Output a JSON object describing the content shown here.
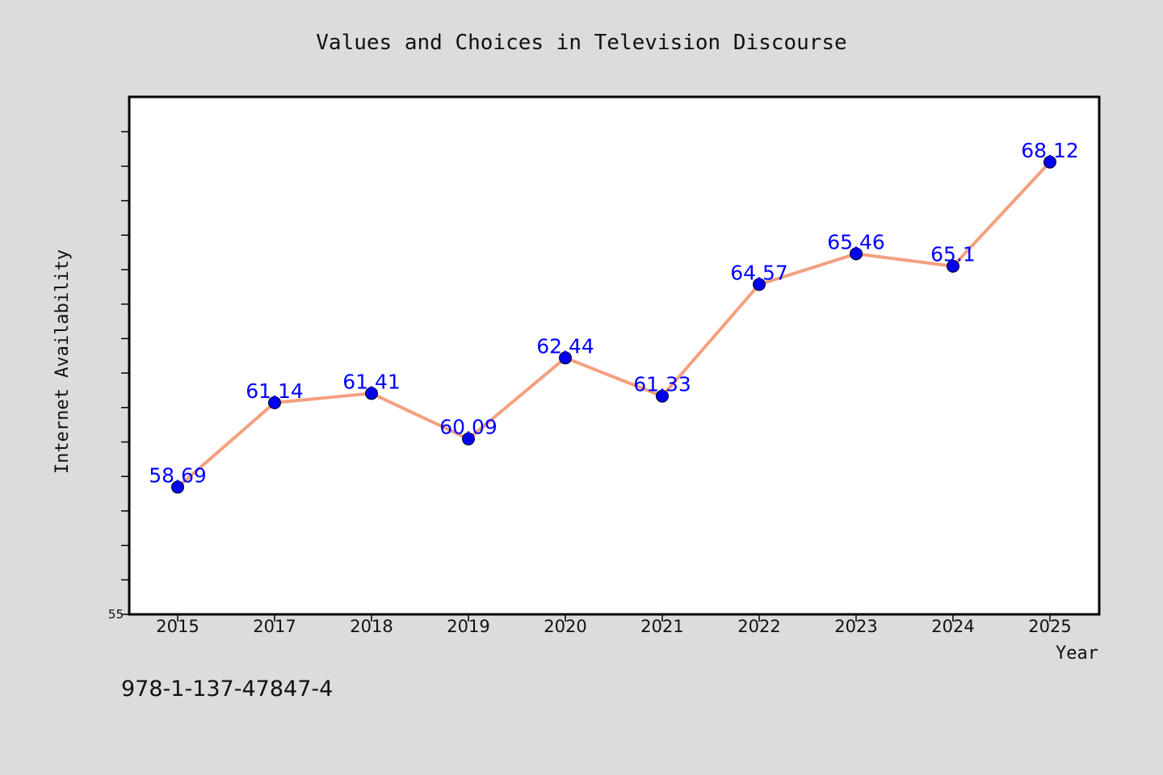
{
  "chart_data": {
    "type": "line",
    "title": "Values and Choices in Television Discourse",
    "xlabel": "Year",
    "ylabel": "Internet Availability",
    "categories": [
      "2015",
      "2017",
      "2018",
      "2019",
      "2020",
      "2021",
      "2022",
      "2023",
      "2024",
      "2025"
    ],
    "series": [
      {
        "values": [
          58.69,
          61.14,
          61.41,
          60.09,
          62.44,
          61.33,
          64.57,
          65.46,
          65.1,
          68.12
        ],
        "labels": [
          "58.69",
          "61.14",
          "61.41",
          "60.09",
          "62.44",
          "61.33",
          "64.57",
          "65.46",
          "65.1",
          "68.12"
        ]
      }
    ],
    "ylim": [
      55,
      70
    ],
    "yticks": [
      55
    ],
    "ytick_labels": [
      "55"
    ],
    "minor_tick_step": 1,
    "grid": false,
    "legend": "none",
    "colors": {
      "line": "#f4a07e",
      "marker": "#0000ee",
      "data_label": "#0000ff",
      "plot_bg": "#ffffff",
      "page_bg": "#dcdcdc"
    }
  },
  "footnote": "978-1-137-47847-4"
}
